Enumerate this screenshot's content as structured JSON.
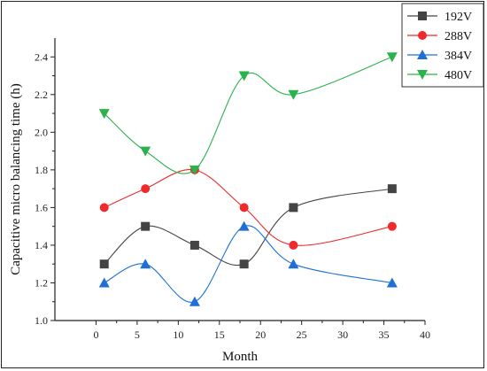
{
  "chart_data": {
    "type": "line",
    "title": "",
    "xlabel": "Month",
    "ylabel": "Capacitive micro balancing time (h)",
    "xlim": [
      -5,
      40
    ],
    "ylim": [
      1.0,
      2.5
    ],
    "x_ticks": [
      0,
      5,
      10,
      15,
      20,
      25,
      30,
      35,
      40
    ],
    "y_ticks": [
      1.0,
      1.2,
      1.4,
      1.6,
      1.8,
      2.0,
      2.2,
      2.4
    ],
    "x": [
      1,
      6,
      12,
      18,
      24,
      36
    ],
    "grid": false,
    "smooth": true,
    "legend_position": "top-right",
    "series": [
      {
        "name": "192V",
        "color": "#444444",
        "marker": "square",
        "values": [
          1.3,
          1.5,
          1.4,
          1.3,
          1.6,
          1.7
        ]
      },
      {
        "name": "288V",
        "color": "#ee2a2a",
        "marker": "circle",
        "values": [
          1.6,
          1.7,
          1.8,
          1.6,
          1.4,
          1.5
        ]
      },
      {
        "name": "384V",
        "color": "#1f6fd6",
        "marker": "triangle-up",
        "values": [
          1.2,
          1.3,
          1.1,
          1.5,
          1.3,
          1.2
        ]
      },
      {
        "name": "480V",
        "color": "#2bb24c",
        "marker": "triangle-down",
        "values": [
          2.1,
          1.9,
          1.8,
          2.3,
          2.2,
          2.4
        ]
      }
    ]
  }
}
